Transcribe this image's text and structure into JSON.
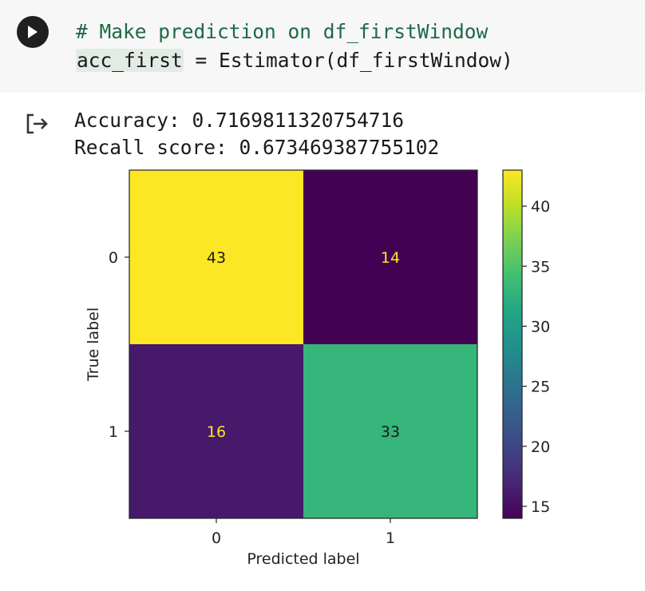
{
  "code_cell": {
    "run_icon": "play-icon",
    "comment": "# Make prediction on df_firstWindow",
    "variable": "acc_first",
    "assignment": " = Estimator(df_firstWindow)"
  },
  "output": {
    "icon": "output-arrow-icon",
    "accuracy_line": "Accuracy: 0.7169811320754716",
    "recall_line": "Recall score: 0.673469387755102"
  },
  "chart_data": {
    "type": "heatmap",
    "xlabel": "Predicted label",
    "ylabel": "True label",
    "x_categories": [
      "0",
      "1"
    ],
    "y_categories": [
      "0",
      "1"
    ],
    "values": [
      [
        43,
        14
      ],
      [
        16,
        33
      ]
    ],
    "colormap": "viridis",
    "colorbar": {
      "min": 14,
      "max": 43,
      "ticks": [
        15,
        20,
        25,
        30,
        35,
        40
      ]
    },
    "colors": {
      "high": "#fde725",
      "low": "#440154"
    }
  }
}
